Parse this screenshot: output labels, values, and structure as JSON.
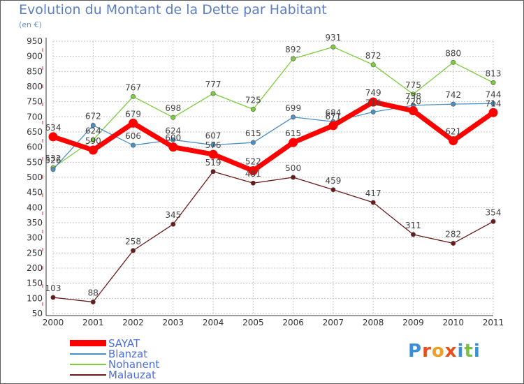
{
  "title": "Evolution du Montant de la Dette par Habitant",
  "subtitle": "(en €)",
  "logo_text": "Proxiti",
  "colors": {
    "title": "#5b7fc2",
    "grid": "#c8c8c8",
    "axis_text": "#333333",
    "value_text": "#444444"
  },
  "chart_data": {
    "type": "line",
    "x": [
      "2000",
      "2001",
      "2002",
      "2003",
      "2004",
      "2005",
      "2006",
      "2007",
      "2008",
      "2009",
      "2010",
      "2011"
    ],
    "ylim": [
      50,
      950
    ],
    "yticks": [
      50,
      100,
      150,
      200,
      250,
      300,
      350,
      400,
      450,
      500,
      550,
      600,
      650,
      700,
      750,
      800,
      850,
      900,
      950
    ],
    "grid": true,
    "legend_position": "bottom-left",
    "series": [
      {
        "name": "SAYAT",
        "color": "#ff0000",
        "values": [
          634,
          590,
          679,
          600,
          576,
          522,
          615,
          671,
          749,
          720,
          621,
          714
        ]
      },
      {
        "name": "Blanzat",
        "color": "#4a90c4",
        "values": [
          526,
          672,
          606,
          624,
          607,
          615,
          699,
          684,
          716,
          738,
          742,
          744
        ]
      },
      {
        "name": "Nohanent",
        "color": "#7ccc3c",
        "values": [
          532,
          624,
          767,
          698,
          777,
          725,
          892,
          931,
          872,
          775,
          880,
          813
        ]
      },
      {
        "name": "Malauzat",
        "color": "#6b1a1a",
        "values": [
          103,
          88,
          258,
          345,
          519,
          481,
          500,
          459,
          417,
          311,
          282,
          354
        ]
      }
    ]
  }
}
